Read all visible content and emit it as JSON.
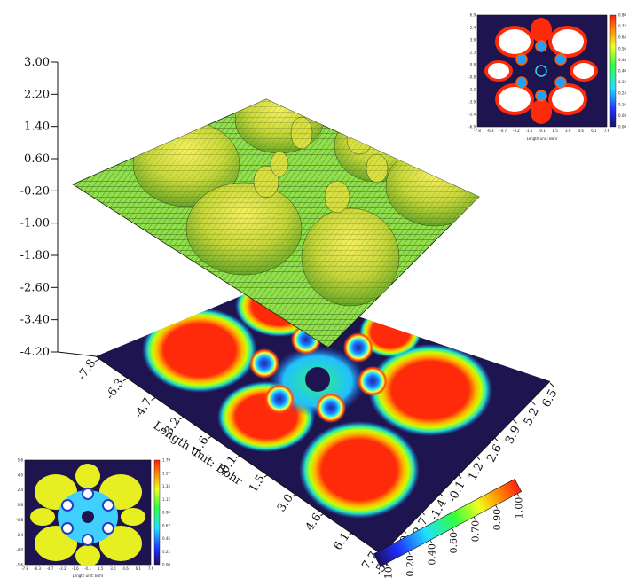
{
  "chart_data": {
    "type": "surface",
    "zaxis": {
      "ticks": [
        "3.00",
        "2.20",
        "1.40",
        "0.60",
        "-0.20",
        "-1.00",
        "-1.80",
        "-2.60",
        "-3.40",
        "-4.20"
      ]
    },
    "xaxis": {
      "label": "Length unit: Bohr",
      "ticks": [
        "-7.8",
        "-6.3",
        "-4.7",
        "-3.2",
        "-1.6",
        "-0.1",
        "1.5",
        "3.0",
        "4.6",
        "6.1",
        "7.7"
      ]
    },
    "yaxis": {
      "ticks": [
        "-5.3",
        "-4.0",
        "-2.7",
        "-1.4",
        "-0.1",
        "1.2",
        "2.6",
        "3.9",
        "5.2",
        "6.5"
      ]
    },
    "colorbar": {
      "ticks": [
        "0.10",
        "0.20",
        "0.40",
        "0.60",
        "0.70",
        "0.90",
        "1.00"
      ]
    },
    "surface_colors": {
      "surface": "#8fe04a",
      "peak": "#f0e030",
      "mesh": "#1a2a10"
    },
    "map_colors": {
      "background": "#1e1450",
      "high": "#ff2a0a"
    }
  },
  "inset_top_right": {
    "colorbar_ticks": [
      "0.80",
      "0.72",
      "0.64",
      "0.56",
      "0.48",
      "0.40",
      "0.32",
      "0.24",
      "0.16",
      "0.08",
      "0.00"
    ],
    "xticks": [
      "-7.8",
      "-6.3",
      "-4.7",
      "-3.2",
      "-1.6",
      "-0.1",
      "1.5",
      "3.0",
      "4.6",
      "6.1",
      "7.6"
    ],
    "yticks": [
      "6.9",
      "5.4",
      "3.9",
      "2.3",
      "0.8",
      "-0.8",
      "-2.3",
      "-3.9",
      "-5.4",
      "-6.9"
    ],
    "xlabel": "Length unit: Bohr"
  },
  "inset_bottom_left": {
    "colorbar_ticks": [
      "1.79",
      "1.57",
      "1.35",
      "1.12",
      "0.90",
      "0.67",
      "0.45",
      "0.22",
      "0.00"
    ],
    "xticks": [
      "-7.8",
      "-6.3",
      "-4.7",
      "-3.2",
      "-1.6",
      "-0.1",
      "1.5",
      "3.0",
      "4.6",
      "6.1",
      "7.6"
    ],
    "yticks": [
      "5.6",
      "4.0",
      "2.4",
      "0.8",
      "-0.8",
      "-2.4",
      "-4.0",
      "-5.6"
    ],
    "xlabel": "Length unit: Bohr"
  }
}
